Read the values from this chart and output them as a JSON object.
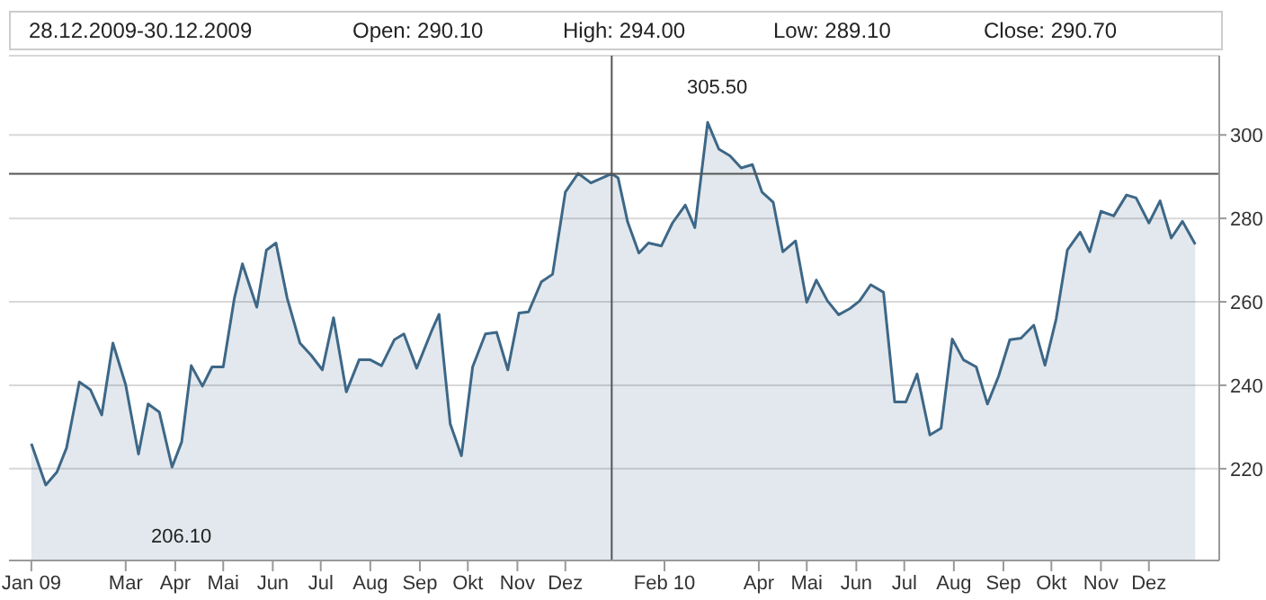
{
  "chart_data": {
    "type": "area",
    "annotations": [
      "28.12.2009-30.12.2009",
      "Open: 290.10",
      "High: 294.00",
      "Low: 289.10",
      "Close: 290.70",
      "305.50",
      "206.10"
    ],
    "x": [
      "2009-01-01",
      "2009-01-10",
      "2009-01-17",
      "2009-01-23",
      "2009-01-31",
      "2009-02-07",
      "2009-02-14",
      "2009-02-21",
      "2009-03-01",
      "2009-03-09",
      "2009-03-15",
      "2009-03-22",
      "2009-03-30",
      "2009-04-05",
      "2009-04-11",
      "2009-04-18",
      "2009-04-24",
      "2009-05-01",
      "2009-05-08",
      "2009-05-13",
      "2009-05-22",
      "2009-05-28",
      "2009-06-03",
      "2009-06-10",
      "2009-06-18",
      "2009-06-25",
      "2009-07-02",
      "2009-07-09",
      "2009-07-17",
      "2009-07-25",
      "2009-08-01",
      "2009-08-08",
      "2009-08-16",
      "2009-08-22",
      "2009-08-30",
      "2009-09-08",
      "2009-09-13",
      "2009-09-20",
      "2009-09-27",
      "2009-10-04",
      "2009-10-12",
      "2009-10-19",
      "2009-10-26",
      "2009-11-02",
      "2009-11-08",
      "2009-11-16",
      "2009-11-23",
      "2009-12-01",
      "2009-12-09",
      "2009-12-17",
      "2009-12-30",
      "2010-01-03",
      "2010-01-09",
      "2010-01-16",
      "2010-01-22",
      "2010-01-30",
      "2010-02-06",
      "2010-02-14",
      "2010-02-20",
      "2010-02-28",
      "2010-03-07",
      "2010-03-14",
      "2010-03-21",
      "2010-03-28",
      "2010-04-03",
      "2010-04-10",
      "2010-04-16",
      "2010-04-24",
      "2010-05-01",
      "2010-05-07",
      "2010-05-14",
      "2010-05-21",
      "2010-05-28",
      "2010-06-03",
      "2010-06-10",
      "2010-06-18",
      "2010-06-25",
      "2010-07-02",
      "2010-07-09",
      "2010-07-17",
      "2010-07-24",
      "2010-07-31",
      "2010-08-07",
      "2010-08-15",
      "2010-08-22",
      "2010-08-29",
      "2010-09-05",
      "2010-09-12",
      "2010-09-20",
      "2010-09-27",
      "2010-10-04",
      "2010-10-11",
      "2010-10-19",
      "2010-10-25",
      "2010-11-01",
      "2010-11-09",
      "2010-11-17",
      "2010-11-23",
      "2010-12-01",
      "2010-12-08",
      "2010-12-15",
      "2010-12-22",
      "2010-12-30"
    ],
    "series": [
      {
        "color": "#3d6787",
        "values": [
          226.0,
          216.1,
          219.2,
          225.0,
          240.8,
          238.9,
          232.9,
          250.1,
          240.1,
          223.5,
          235.5,
          233.6,
          220.4,
          226.4,
          244.7,
          239.8,
          244.4,
          244.4,
          260.9,
          269.1,
          258.7,
          272.4,
          274.1,
          260.9,
          250.1,
          247.2,
          243.7,
          256.2,
          238.4,
          246.1,
          246.1,
          244.7,
          250.9,
          252.3,
          244.1,
          252.7,
          257.0,
          230.7,
          223.1,
          244.4,
          252.3,
          252.7,
          243.7,
          257.3,
          257.6,
          264.8,
          266.6,
          286.3,
          290.8,
          288.5,
          290.7,
          289.7,
          279.1,
          271.7,
          274.1,
          273.4,
          278.9,
          283.2,
          277.8,
          303.0,
          296.6,
          295.0,
          292.1,
          292.9,
          286.3,
          283.9,
          272.0,
          274.6,
          259.9,
          265.2,
          260.2,
          256.9,
          258.4,
          260.2,
          264.1,
          262.3,
          236.0,
          236.0,
          242.7,
          228.1,
          229.7,
          251.1,
          246.1,
          244.4,
          235.5,
          242.2,
          250.9,
          251.3,
          254.4,
          244.8,
          255.9,
          272.4,
          276.7,
          272.0,
          281.7,
          280.6,
          285.6,
          284.9,
          278.9,
          284.2,
          275.3,
          279.3,
          273.8
        ]
      }
    ],
    "xlim": [
      "2008-12-18",
      "2011-01-14"
    ],
    "xticks": [
      {
        "value": "2009-01-01",
        "label": "Jan 09"
      },
      {
        "value": "2009-03-01",
        "label": "Mar"
      },
      {
        "value": "2009-04-01",
        "label": "Apr"
      },
      {
        "value": "2009-05-01",
        "label": "Mai"
      },
      {
        "value": "2009-06-01",
        "label": "Jun"
      },
      {
        "value": "2009-07-01",
        "label": "Jul"
      },
      {
        "value": "2009-08-01",
        "label": "Aug"
      },
      {
        "value": "2009-09-01",
        "label": "Sep"
      },
      {
        "value": "2009-10-01",
        "label": "Okt"
      },
      {
        "value": "2009-11-01",
        "label": "Nov"
      },
      {
        "value": "2009-12-01",
        "label": "Dez"
      },
      {
        "value": "2010-02-01",
        "label": "Feb 10"
      },
      {
        "value": "2010-04-01",
        "label": "Apr"
      },
      {
        "value": "2010-05-01",
        "label": "Mai"
      },
      {
        "value": "2010-06-01",
        "label": "Jun"
      },
      {
        "value": "2010-07-01",
        "label": "Jul"
      },
      {
        "value": "2010-08-01",
        "label": "Aug"
      },
      {
        "value": "2010-09-01",
        "label": "Sep"
      },
      {
        "value": "2010-10-01",
        "label": "Okt"
      },
      {
        "value": "2010-11-01",
        "label": "Nov"
      },
      {
        "value": "2010-12-01",
        "label": "Dez"
      }
    ],
    "ylim": [
      198,
      319
    ],
    "yticks": [
      220,
      240,
      260,
      280,
      300
    ],
    "grid": "y",
    "ref_lines": [
      {
        "axis": "x",
        "value": "2009-12-30",
        "color": "#555555"
      },
      {
        "axis": "y",
        "value": 290.7,
        "color": "#555555"
      }
    ]
  }
}
